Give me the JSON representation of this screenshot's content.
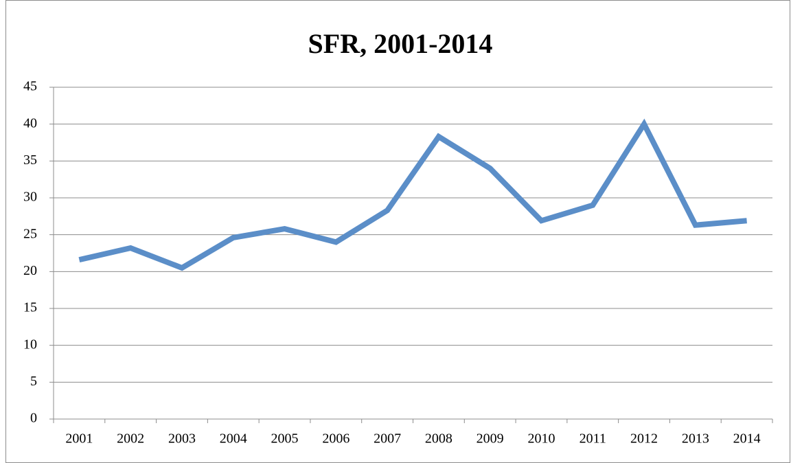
{
  "chart_data": {
    "type": "line",
    "title": "SFR, 2001-2014",
    "categories": [
      "2001",
      "2002",
      "2003",
      "2004",
      "2005",
      "2006",
      "2007",
      "2008",
      "2009",
      "2010",
      "2011",
      "2012",
      "2013",
      "2014"
    ],
    "series": [
      {
        "name": "SFR",
        "color": "#5b8ec8",
        "values": [
          21.6,
          23.2,
          20.5,
          24.6,
          25.8,
          24.0,
          28.3,
          38.3,
          34.0,
          26.9,
          29.0,
          40.0,
          26.3,
          26.9
        ]
      }
    ],
    "ylim": [
      0,
      45
    ],
    "yticks": [
      0,
      5,
      10,
      15,
      20,
      25,
      30,
      35,
      40,
      45
    ],
    "grid": true
  }
}
